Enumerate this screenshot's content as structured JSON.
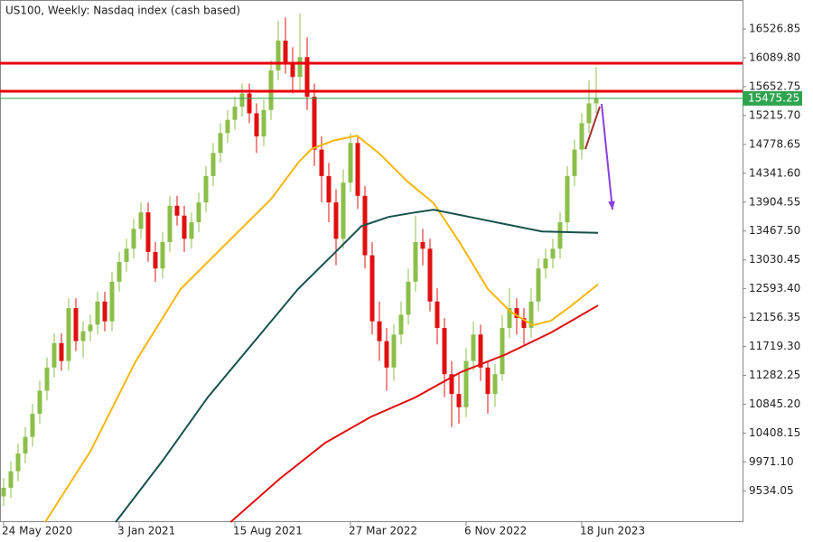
{
  "chart_data": {
    "type": "candlestick",
    "title": "US100, Weekly:  Nasdaq index (cash based)",
    "up_color": "#8cbf4a",
    "down_color": "#e01010",
    "open": [
      9450,
      9580,
      9830,
      10100,
      10350,
      10700,
      11050,
      11400,
      11770,
      11500,
      12300,
      11800,
      11950,
      12050,
      12400,
      12100,
      12700,
      13000,
      13200,
      13500,
      13750,
      13150,
      12900,
      13300,
      13850,
      13700,
      13350,
      13600,
      13900,
      14300,
      14650,
      14950,
      15150,
      15350,
      15550,
      15250,
      14900,
      15300,
      15900,
      16350,
      16000,
      15800,
      16100,
      15500,
      14700,
      14300,
      13900,
      13350,
      14200,
      14800,
      14000,
      13100,
      12100,
      11800,
      11400,
      11900,
      12200,
      12700,
      13300,
      13200,
      12400,
      12000,
      11300,
      11000,
      10800,
      11500,
      11900,
      11400,
      11000,
      11300,
      12000,
      12300,
      12150,
      12000,
      12400,
      12900,
      13050,
      13200,
      13600,
      14300,
      14700,
      15100,
      15400
    ],
    "high": [
      9730,
      9980,
      10250,
      10500,
      10850,
      11200,
      11550,
      11920,
      11920,
      12450,
      12450,
      12100,
      12200,
      12550,
      12550,
      12850,
      13150,
      13350,
      13650,
      13900,
      13900,
      13300,
      13450,
      14000,
      14000,
      13850,
      13750,
      14050,
      14450,
      14800,
      15100,
      15300,
      15500,
      15700,
      15700,
      15400,
      15450,
      16050,
      16650,
      16700,
      16250,
      16760,
      16400,
      15700,
      14900,
      14500,
      14100,
      14400,
      14950,
      14900,
      14150,
      13300,
      12400,
      12000,
      12050,
      12400,
      12900,
      13700,
      13500,
      13350,
      12600,
      12150,
      11500,
      11300,
      11700,
      12100,
      12050,
      11500,
      11450,
      12200,
      12600,
      12450,
      12300,
      12600,
      13050,
      13200,
      13350,
      13750,
      14450,
      14850,
      15250,
      15750,
      15950
    ],
    "low": [
      9300,
      9430,
      9680,
      9950,
      10200,
      10550,
      10900,
      11250,
      11350,
      11350,
      11650,
      11550,
      11800,
      11900,
      11950,
      11950,
      12550,
      12850,
      13050,
      13350,
      13000,
      12700,
      12750,
      13150,
      13550,
      13150,
      13200,
      13450,
      13750,
      14150,
      14500,
      14800,
      15000,
      15200,
      15100,
      14650,
      14750,
      15150,
      15750,
      15850,
      15550,
      15600,
      15300,
      14450,
      13900,
      13600,
      12950,
      13200,
      14050,
      13800,
      12900,
      11900,
      11500,
      11050,
      11200,
      11750,
      12050,
      12550,
      12950,
      12250,
      11750,
      10950,
      10500,
      10550,
      10650,
      11350,
      11200,
      10700,
      10800,
      11200,
      11850,
      11900,
      11750,
      11850,
      12250,
      12750,
      12900,
      13050,
      13450,
      14150,
      14550,
      14950,
      15250
    ],
    "close": [
      9580,
      9830,
      10100,
      10350,
      10700,
      11050,
      11400,
      11770,
      11500,
      12300,
      11800,
      11950,
      12050,
      12400,
      12100,
      12700,
      13000,
      13200,
      13500,
      13750,
      13150,
      12900,
      13300,
      13850,
      13700,
      13350,
      13600,
      13900,
      14300,
      14650,
      14950,
      15150,
      15350,
      15550,
      15250,
      14900,
      15300,
      15900,
      16350,
      16000,
      15800,
      16100,
      15500,
      14700,
      14300,
      13900,
      13350,
      14200,
      14800,
      14000,
      13100,
      12100,
      11800,
      11400,
      11900,
      12200,
      12700,
      13300,
      13200,
      12400,
      12000,
      11300,
      11000,
      10800,
      11500,
      11900,
      11400,
      11000,
      11300,
      12000,
      12300,
      12150,
      12000,
      12400,
      12900,
      13050,
      13200,
      13600,
      14300,
      14700,
      15100,
      15400,
      15475.25
    ],
    "lines": [
      {
        "color": "#f5b70a",
        "x": [
          5.75,
          12,
          18.25,
          24.5,
          30.75,
          37,
          40.75,
          42.6,
          45.75,
          48.9,
          52,
          55.75,
          59.5,
          63.25,
          67,
          70.1,
          73.25,
          75.75,
          78.25,
          82.25
        ],
        "values": [
          9060,
          10130,
          11490,
          12590,
          13270,
          13950,
          14500,
          14710,
          14840,
          14910,
          14640,
          14230,
          13890,
          13270,
          12590,
          12250,
          12040,
          12110,
          12310,
          12660
        ]
      },
      {
        "color": "#17524a",
        "x": [
          15.5,
          22,
          28.25,
          34.5,
          40.75,
          45.75,
          49.5,
          53.25,
          57,
          59.5,
          64.5,
          69.5,
          74.5,
          82.25
        ],
        "values": [
          9060,
          9990,
          10950,
          11770,
          12590,
          13130,
          13540,
          13680,
          13750,
          13790,
          13680,
          13570,
          13460,
          13440
        ]
      },
      {
        "color": "#e01010",
        "x": [
          31.4,
          38.25,
          44.5,
          50.75,
          57,
          63.25,
          69.5,
          75.75,
          82.25
        ],
        "values": [
          9060,
          9720,
          10260,
          10650,
          10950,
          11330,
          11600,
          11930,
          12340
        ]
      }
    ],
    "levels": [
      {
        "value": 16007,
        "color": "#e8000b"
      },
      {
        "value": 15583,
        "color": "#e8000b"
      }
    ],
    "current_price": 15475.25,
    "current_color": "#2ea44f",
    "trendlines": [
      {
        "color": "#a0302a",
        "x": [
          80.5,
          82.5
        ],
        "values": [
          14708,
          15351
        ],
        "arrow": false
      },
      {
        "color": "#8a3fe0",
        "x": [
          82.75,
          84.25
        ],
        "values": [
          15392,
          13791
        ],
        "arrow": true
      }
    ],
    "ylim": [
      9060,
      16965
    ],
    "yticks": [
      16526.85,
      {
        "value": 16089.8,
        "label": "16089.80"
      },
      15652.75,
      {
        "value": 15215.7,
        "label": "15215.70"
      },
      14778.65,
      {
        "value": 14341.6,
        "label": "14341.60"
      },
      13904.55,
      {
        "value": 13467.5,
        "label": "13467.50"
      },
      13030.45,
      {
        "value": 12593.4,
        "label": "12593.40"
      },
      12156.35,
      {
        "value": 11719.3,
        "label": "11719.30"
      },
      11282.25,
      {
        "value": 10845.2,
        "label": "10845.20"
      },
      10408.15,
      {
        "value": 9971.1,
        "label": "9971.10"
      },
      9534.05
    ],
    "xticks": [
      {
        "value": 0,
        "label": "24 May 2020"
      },
      {
        "value": 16,
        "label": "3 Jan 2021"
      },
      {
        "value": 32,
        "label": "15 Aug 2021"
      },
      {
        "value": 48,
        "label": "27 Mar 2022"
      },
      {
        "value": 64,
        "label": "6 Nov 2022"
      },
      {
        "value": 80,
        "label": "18 Jun 2023"
      }
    ]
  }
}
